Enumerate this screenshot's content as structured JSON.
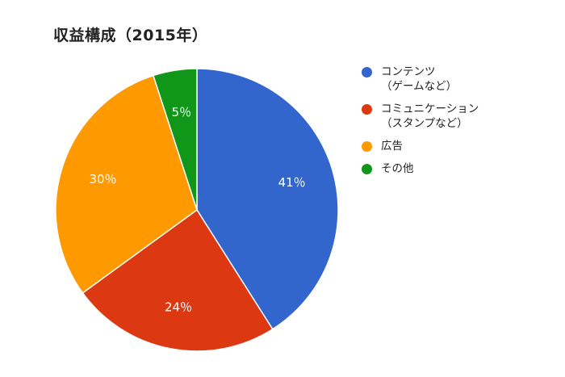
{
  "chart_data": {
    "type": "pie",
    "title": "収益構成（2015年）",
    "slices": [
      {
        "name": "コンテンツ\n（ゲームなど）",
        "value": 41,
        "label": "41％",
        "color": "#3366cc"
      },
      {
        "name": "コミュニケーション\n（スタンプなど）",
        "value": 24,
        "label": "24％",
        "color": "#dc3912"
      },
      {
        "name": "広告",
        "value": 30,
        "label": "30％",
        "color": "#ff9900"
      },
      {
        "name": "その他",
        "value": 5,
        "label": "5％",
        "color": "#109618"
      }
    ],
    "legend_position": "right"
  }
}
